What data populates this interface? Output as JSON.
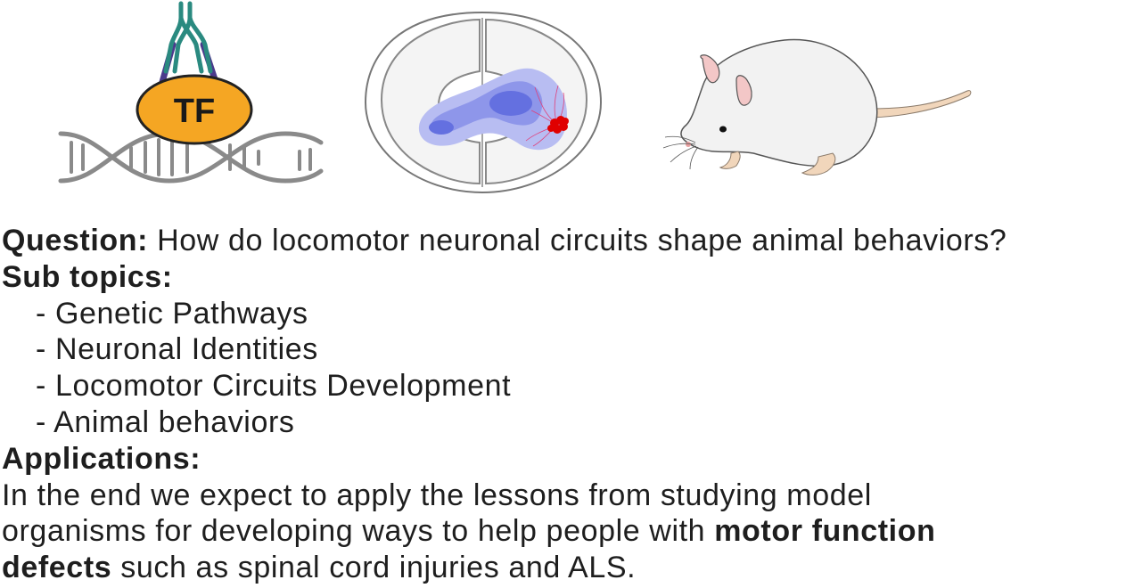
{
  "illustrations": {
    "tf_dna": {
      "icon": "transcription-factor-dna-icon",
      "label": "TF",
      "colors": {
        "tf_fill": "#f5a623",
        "tf_stroke": "#222222",
        "antibody_teal": "#2a8a80",
        "antibody_purple": "#4b3a8c",
        "dna": "#8a8a8a"
      }
    },
    "spinal_cord": {
      "icon": "spinal-cord-section-icon",
      "colors": {
        "outline": "#777777",
        "gray_matter": "#f4f4f4",
        "domain_light": "#b8bdf2",
        "domain_mid": "#8e96ea",
        "domain_dark": "#6470e0",
        "neurons": "#e00000",
        "axons": "#e0407a"
      }
    },
    "mouse": {
      "icon": "mouse-icon",
      "colors": {
        "body": "#f2f2f2",
        "outline": "#555555",
        "ear_inner": "#f3c7c7",
        "tail": "#f1d6bb",
        "eye": "#111111"
      }
    }
  },
  "question": {
    "label": "Question:",
    "text": " How do locomotor neuronal circuits shape animal behaviors?"
  },
  "subtopics": {
    "label": "Sub topics:",
    "items": [
      "- Genetic Pathways",
      "- Neuronal Identities",
      "- Locomotor Circuits Development",
      "- Animal behaviors"
    ]
  },
  "applications": {
    "label": "Applications:",
    "line1": "In the end we expect to apply the lessons from studying model",
    "line2_prefix": "organisms for developing ways to help people with ",
    "emph1": "motor function",
    "emph2": "defects",
    "line3_suffix": " such as spinal cord injuries and ALS."
  }
}
